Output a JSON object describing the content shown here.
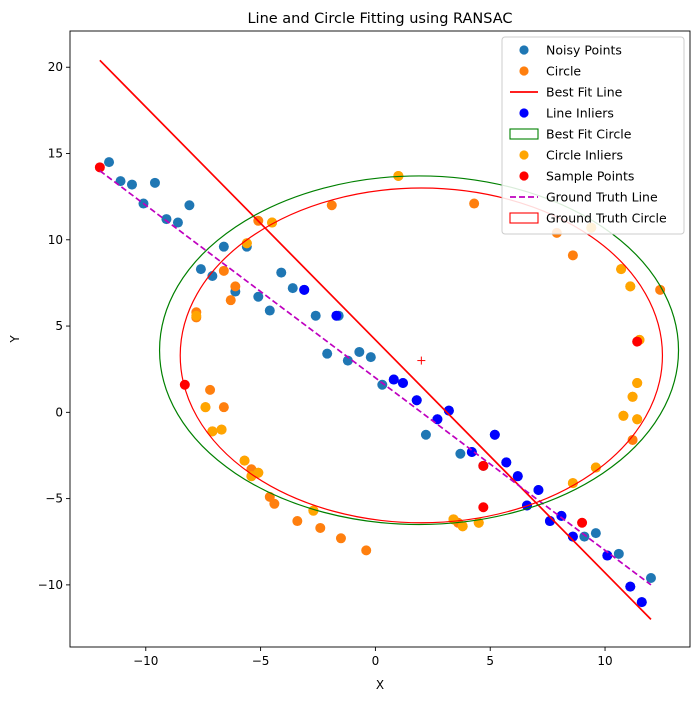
{
  "chart_data": {
    "type": "scatter",
    "title": "Line and Circle Fitting using RANSAC",
    "xlabel": "X",
    "ylabel": "Y",
    "xlim": [
      -13.3,
      13.7
    ],
    "ylim": [
      -13.6,
      22.1
    ],
    "xticks": [
      -10,
      -5,
      0,
      5,
      10
    ],
    "yticks": [
      -10,
      -5,
      0,
      5,
      10,
      15,
      20
    ],
    "grid": false,
    "legend_position": "top-right",
    "colors": {
      "noisy": "#1f77b4",
      "circle": "#ff7f0e",
      "fit_line": "#ff0000",
      "line_inliers": "#0000ff",
      "fit_circle": "#008000",
      "circle_inliers": "#ffa500",
      "sample": "#ff0000",
      "gt_line": "#bf00bf",
      "gt_circle": "#ff0000"
    },
    "legend": [
      {
        "label": "Noisy Points",
        "kind": "marker",
        "color": "#1f77b4"
      },
      {
        "label": "Circle",
        "kind": "marker",
        "color": "#ff7f0e"
      },
      {
        "label": "Best Fit Line",
        "kind": "line",
        "color": "#ff0000",
        "dash": "solid"
      },
      {
        "label": "Line Inliers",
        "kind": "marker",
        "color": "#0000ff"
      },
      {
        "label": "Best Fit Circle",
        "kind": "patch",
        "color": "#008000"
      },
      {
        "label": "Circle Inliers",
        "kind": "marker",
        "color": "#ffa500"
      },
      {
        "label": "Sample Points",
        "kind": "marker",
        "color": "#ff0000"
      },
      {
        "label": "Ground Truth Line",
        "kind": "line",
        "color": "#bf00bf",
        "dash": "dashed"
      },
      {
        "label": "Ground Truth Circle",
        "kind": "patch",
        "color": "#ff0000"
      }
    ],
    "best_fit_line": {
      "x": [
        -12,
        12
      ],
      "y": [
        20.4,
        -12.0
      ]
    },
    "ground_truth_line": {
      "x": [
        -12,
        12
      ],
      "y": [
        14.0,
        -10.0
      ]
    },
    "best_fit_circle": {
      "center": [
        1.9,
        3.6
      ],
      "radius_x": 11.3,
      "radius_y": 10.1
    },
    "ground_truth_circle": {
      "center": [
        2.0,
        3.3
      ],
      "radius_x": 10.5,
      "radius_y": 9.7
    },
    "center_marker": {
      "x": 2.0,
      "y": 3.0,
      "color": "#ff0000"
    },
    "series": [
      {
        "name": "Noisy Points",
        "color": "#1f77b4",
        "points": [
          [
            -11.6,
            14.5
          ],
          [
            -11.1,
            13.4
          ],
          [
            -10.6,
            13.2
          ],
          [
            -10.1,
            12.1
          ],
          [
            -9.6,
            13.3
          ],
          [
            -9.1,
            11.2
          ],
          [
            -8.6,
            11.0
          ],
          [
            -8.1,
            12.0
          ],
          [
            -7.6,
            8.3
          ],
          [
            -7.1,
            7.9
          ],
          [
            -6.6,
            9.6
          ],
          [
            -6.1,
            7.0
          ],
          [
            -5.6,
            9.6
          ],
          [
            -5.1,
            6.7
          ],
          [
            -4.6,
            5.9
          ],
          [
            -4.1,
            8.1
          ],
          [
            -3.6,
            7.2
          ],
          [
            -3.1,
            7.1
          ],
          [
            -2.6,
            5.6
          ],
          [
            -2.1,
            3.4
          ],
          [
            -1.6,
            5.6
          ],
          [
            -1.2,
            3.0
          ],
          [
            -0.7,
            3.5
          ],
          [
            -0.2,
            3.2
          ],
          [
            0.3,
            1.6
          ],
          [
            0.8,
            1.9
          ],
          [
            1.2,
            1.7
          ],
          [
            1.8,
            0.7
          ],
          [
            2.2,
            -1.3
          ],
          [
            2.7,
            -0.4
          ],
          [
            3.2,
            0.1
          ],
          [
            3.7,
            -2.4
          ],
          [
            4.2,
            -2.3
          ],
          [
            4.7,
            -3.1
          ],
          [
            5.2,
            -1.3
          ],
          [
            5.7,
            -2.9
          ],
          [
            6.2,
            -3.7
          ],
          [
            6.6,
            -5.4
          ],
          [
            7.1,
            -4.5
          ],
          [
            7.6,
            -6.3
          ],
          [
            8.1,
            -6.0
          ],
          [
            8.6,
            -7.2
          ],
          [
            9.1,
            -7.2
          ],
          [
            9.6,
            -7.0
          ],
          [
            10.1,
            -8.3
          ],
          [
            10.6,
            -8.2
          ],
          [
            11.1,
            -10.1
          ],
          [
            11.6,
            -11.0
          ],
          [
            12.0,
            -9.6
          ]
        ]
      },
      {
        "name": "Circle",
        "color": "#ff7f0e",
        "points": [
          [
            1.0,
            13.7
          ],
          [
            4.3,
            12.1
          ],
          [
            -1.9,
            12.0
          ],
          [
            -5.1,
            11.1
          ],
          [
            -4.5,
            11.0
          ],
          [
            -5.6,
            9.8
          ],
          [
            -6.6,
            8.2
          ],
          [
            -6.1,
            7.3
          ],
          [
            -6.3,
            6.5
          ],
          [
            -7.8,
            5.8
          ],
          [
            -7.8,
            5.5
          ],
          [
            -7.2,
            1.3
          ],
          [
            -7.4,
            0.3
          ],
          [
            -6.6,
            0.3
          ],
          [
            -7.1,
            -1.1
          ],
          [
            -6.7,
            -1.0
          ],
          [
            -5.7,
            -2.8
          ],
          [
            -5.4,
            -3.3
          ],
          [
            -5.4,
            -3.7
          ],
          [
            -5.1,
            -3.5
          ],
          [
            -4.6,
            -4.9
          ],
          [
            -4.4,
            -5.3
          ],
          [
            -3.4,
            -6.3
          ],
          [
            -2.7,
            -5.7
          ],
          [
            -2.4,
            -6.7
          ],
          [
            -1.5,
            -7.3
          ],
          [
            -0.4,
            -8.0
          ],
          [
            3.4,
            -6.2
          ],
          [
            3.6,
            -6.4
          ],
          [
            3.8,
            -6.6
          ],
          [
            4.5,
            -6.4
          ],
          [
            8.6,
            -4.1
          ],
          [
            9.6,
            -3.2
          ],
          [
            10.8,
            -0.2
          ],
          [
            11.2,
            -1.6
          ],
          [
            11.4,
            -0.4
          ],
          [
            11.4,
            1.7
          ],
          [
            11.2,
            0.9
          ],
          [
            11.5,
            4.2
          ],
          [
            11.1,
            7.3
          ],
          [
            10.7,
            8.3
          ],
          [
            12.4,
            7.1
          ],
          [
            9.4,
            10.7
          ],
          [
            7.9,
            10.4
          ],
          [
            8.6,
            9.1
          ]
        ]
      },
      {
        "name": "Line Inliers",
        "color": "#0000ff",
        "points": [
          [
            -3.1,
            7.1
          ],
          [
            -1.7,
            5.6
          ],
          [
            0.8,
            1.9
          ],
          [
            1.2,
            1.7
          ],
          [
            1.8,
            0.7
          ],
          [
            2.7,
            -0.4
          ],
          [
            3.2,
            0.1
          ],
          [
            4.2,
            -2.3
          ],
          [
            5.2,
            -1.3
          ],
          [
            5.7,
            -2.9
          ],
          [
            6.2,
            -3.7
          ],
          [
            6.6,
            -5.4
          ],
          [
            7.1,
            -4.5
          ],
          [
            7.6,
            -6.3
          ],
          [
            8.1,
            -6.0
          ],
          [
            8.6,
            -7.2
          ],
          [
            10.1,
            -8.3
          ],
          [
            11.1,
            -10.1
          ],
          [
            11.6,
            -11.0
          ]
        ]
      },
      {
        "name": "Circle Inliers",
        "color": "#ffa500",
        "points": [
          [
            1.0,
            13.7
          ],
          [
            -4.5,
            11.0
          ],
          [
            -5.6,
            9.8
          ],
          [
            -7.8,
            5.6
          ],
          [
            -7.4,
            0.3
          ],
          [
            -6.7,
            -1.0
          ],
          [
            -7.1,
            -1.1
          ],
          [
            -5.7,
            -2.8
          ],
          [
            -5.4,
            -3.7
          ],
          [
            -5.1,
            -3.5
          ],
          [
            -2.7,
            -5.7
          ],
          [
            3.4,
            -6.2
          ],
          [
            3.8,
            -6.6
          ],
          [
            4.5,
            -6.4
          ],
          [
            8.6,
            -4.1
          ],
          [
            9.6,
            -3.2
          ],
          [
            10.8,
            -0.2
          ],
          [
            11.2,
            0.9
          ],
          [
            11.4,
            1.7
          ],
          [
            11.5,
            4.2
          ],
          [
            11.4,
            -0.4
          ],
          [
            11.1,
            7.3
          ],
          [
            10.7,
            8.3
          ],
          [
            9.4,
            10.7
          ]
        ]
      },
      {
        "name": "Sample Points",
        "color": "#ff0000",
        "points": [
          [
            -12.0,
            14.2
          ],
          [
            -8.3,
            1.6
          ],
          [
            4.7,
            -3.1
          ],
          [
            4.7,
            -5.5
          ],
          [
            9.0,
            -6.4
          ],
          [
            11.4,
            4.1
          ]
        ]
      }
    ]
  }
}
